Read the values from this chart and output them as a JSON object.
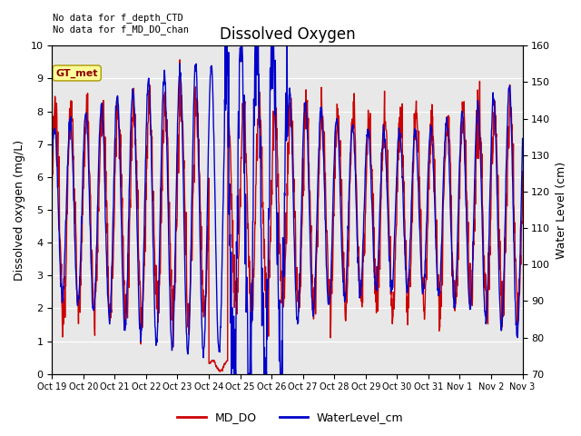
{
  "title": "Dissolved Oxygen",
  "ylabel_left": "Dissolved oxygen (mg/L)",
  "ylabel_right": "Water Level (cm)",
  "ylim_left": [
    0.0,
    10.0
  ],
  "ylim_right": [
    70,
    160
  ],
  "yticks_left": [
    0.0,
    1.0,
    2.0,
    3.0,
    4.0,
    5.0,
    6.0,
    7.0,
    8.0,
    9.0,
    10.0
  ],
  "yticks_right": [
    70,
    80,
    90,
    100,
    110,
    120,
    130,
    140,
    150,
    160
  ],
  "background_color": "#e8e8e8",
  "annotation_text": "No data for f_depth_CTD\nNo data for f_MD_DO_chan",
  "gt_met_label": "GT_met",
  "legend_labels": [
    "MD_DO",
    "WaterLevel_cm"
  ],
  "legend_colors": [
    "#cc0000",
    "#0000cc"
  ],
  "x_labels": [
    "Oct 19",
    "Oct 20",
    "Oct 21",
    "Oct 22",
    "Oct 23",
    "Oct 24",
    "Oct 25",
    "Oct 26",
    "Oct 27",
    "Oct 28",
    "Oct 29",
    "Oct 30",
    "Oct 31",
    "Nov 1",
    "Nov 2",
    "Nov 3"
  ],
  "n_days": 16,
  "line_color_do": "#cc0000",
  "line_color_wl": "#0000cc",
  "line_width": 1.0,
  "title_fontsize": 12,
  "axis_label_fontsize": 9,
  "tick_fontsize": 8,
  "xtick_fontsize": 7
}
